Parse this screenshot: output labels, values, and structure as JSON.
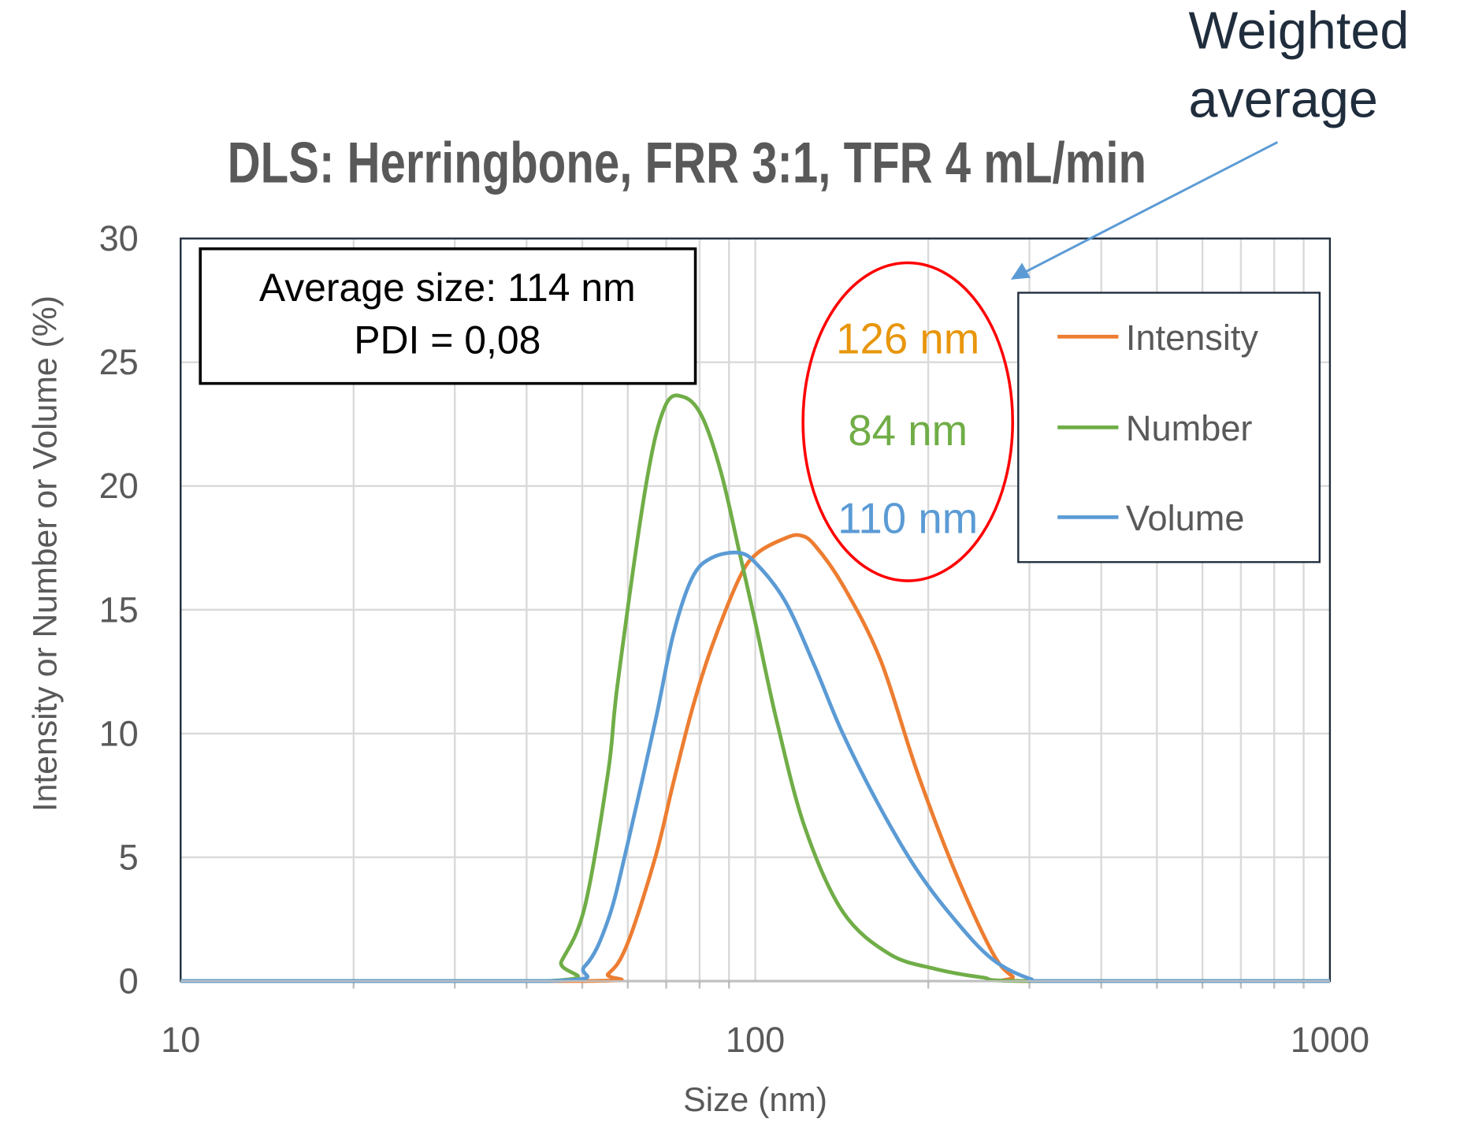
{
  "chart_data": {
    "type": "line",
    "title": "DLS: Herringbone, FRR 3:1, TFR 4 mL/min",
    "xlabel": "Size (nm)",
    "ylabel": "Intensity or Number or Volume  (%)",
    "xscale": "log",
    "xlim": [
      10,
      1000
    ],
    "ylim": [
      0,
      30
    ],
    "xticks": [
      "10",
      "100",
      "1000"
    ],
    "yticks": [
      "0",
      "5",
      "10",
      "15",
      "20",
      "25",
      "30"
    ],
    "grid": true,
    "legend_position": "right",
    "series": [
      {
        "name": "Intensity",
        "color": "#ED7D31",
        "x": [
          10,
          50.5,
          55.5,
          59.9,
          67,
          72,
          77.7,
          84,
          93.9,
          101,
          113,
          120,
          127,
          142,
          165,
          191,
          222,
          258,
          280,
          300,
          1000
        ],
        "y": [
          0,
          0,
          0.3,
          1.5,
          5,
          8,
          11,
          13.5,
          16.3,
          17.3,
          17.9,
          18.0,
          17.6,
          16,
          13,
          8.5,
          4.5,
          1.2,
          0.2,
          0,
          0
        ]
      },
      {
        "name": "Number",
        "color": "#70AD47",
        "x": [
          10,
          43.5,
          46,
          50.5,
          55.5,
          57.6,
          64.5,
          69.6,
          75,
          80.8,
          87.3,
          93.9,
          100,
          109,
          122,
          142,
          171,
          205,
          248,
          300,
          1000
        ],
        "y": [
          0,
          0,
          0.8,
          3,
          8.5,
          12,
          20,
          23.2,
          23.6,
          22.8,
          20.5,
          17.3,
          14.5,
          10.5,
          6.2,
          2.8,
          1.1,
          0.5,
          0.15,
          0,
          0
        ]
      },
      {
        "name": "Volume",
        "color": "#5B9BD5",
        "x": [
          10,
          43.5,
          50.5,
          55.5,
          59.9,
          67,
          72,
          77.7,
          84,
          93.9,
          101,
          113,
          127,
          142,
          165,
          191,
          222,
          258,
          300,
          336,
          1000
        ],
        "y": [
          0,
          0,
          0.6,
          2.5,
          5.5,
          10.5,
          14,
          16.3,
          17.1,
          17.3,
          16.8,
          15.3,
          12.7,
          10,
          7,
          4.5,
          2.5,
          0.9,
          0.1,
          0,
          0
        ]
      }
    ],
    "annotations": {
      "summary_line1": "Average size: 114 nm",
      "summary_line2": "PDI = 0,08",
      "intensity_avg": "126 nm",
      "number_avg": "84 nm",
      "volume_avg": "110 nm",
      "callout_line1": "Weighted",
      "callout_line2": "average",
      "ellipse_color": "#FF0000",
      "arrow_color": "#5B9BD5"
    }
  }
}
